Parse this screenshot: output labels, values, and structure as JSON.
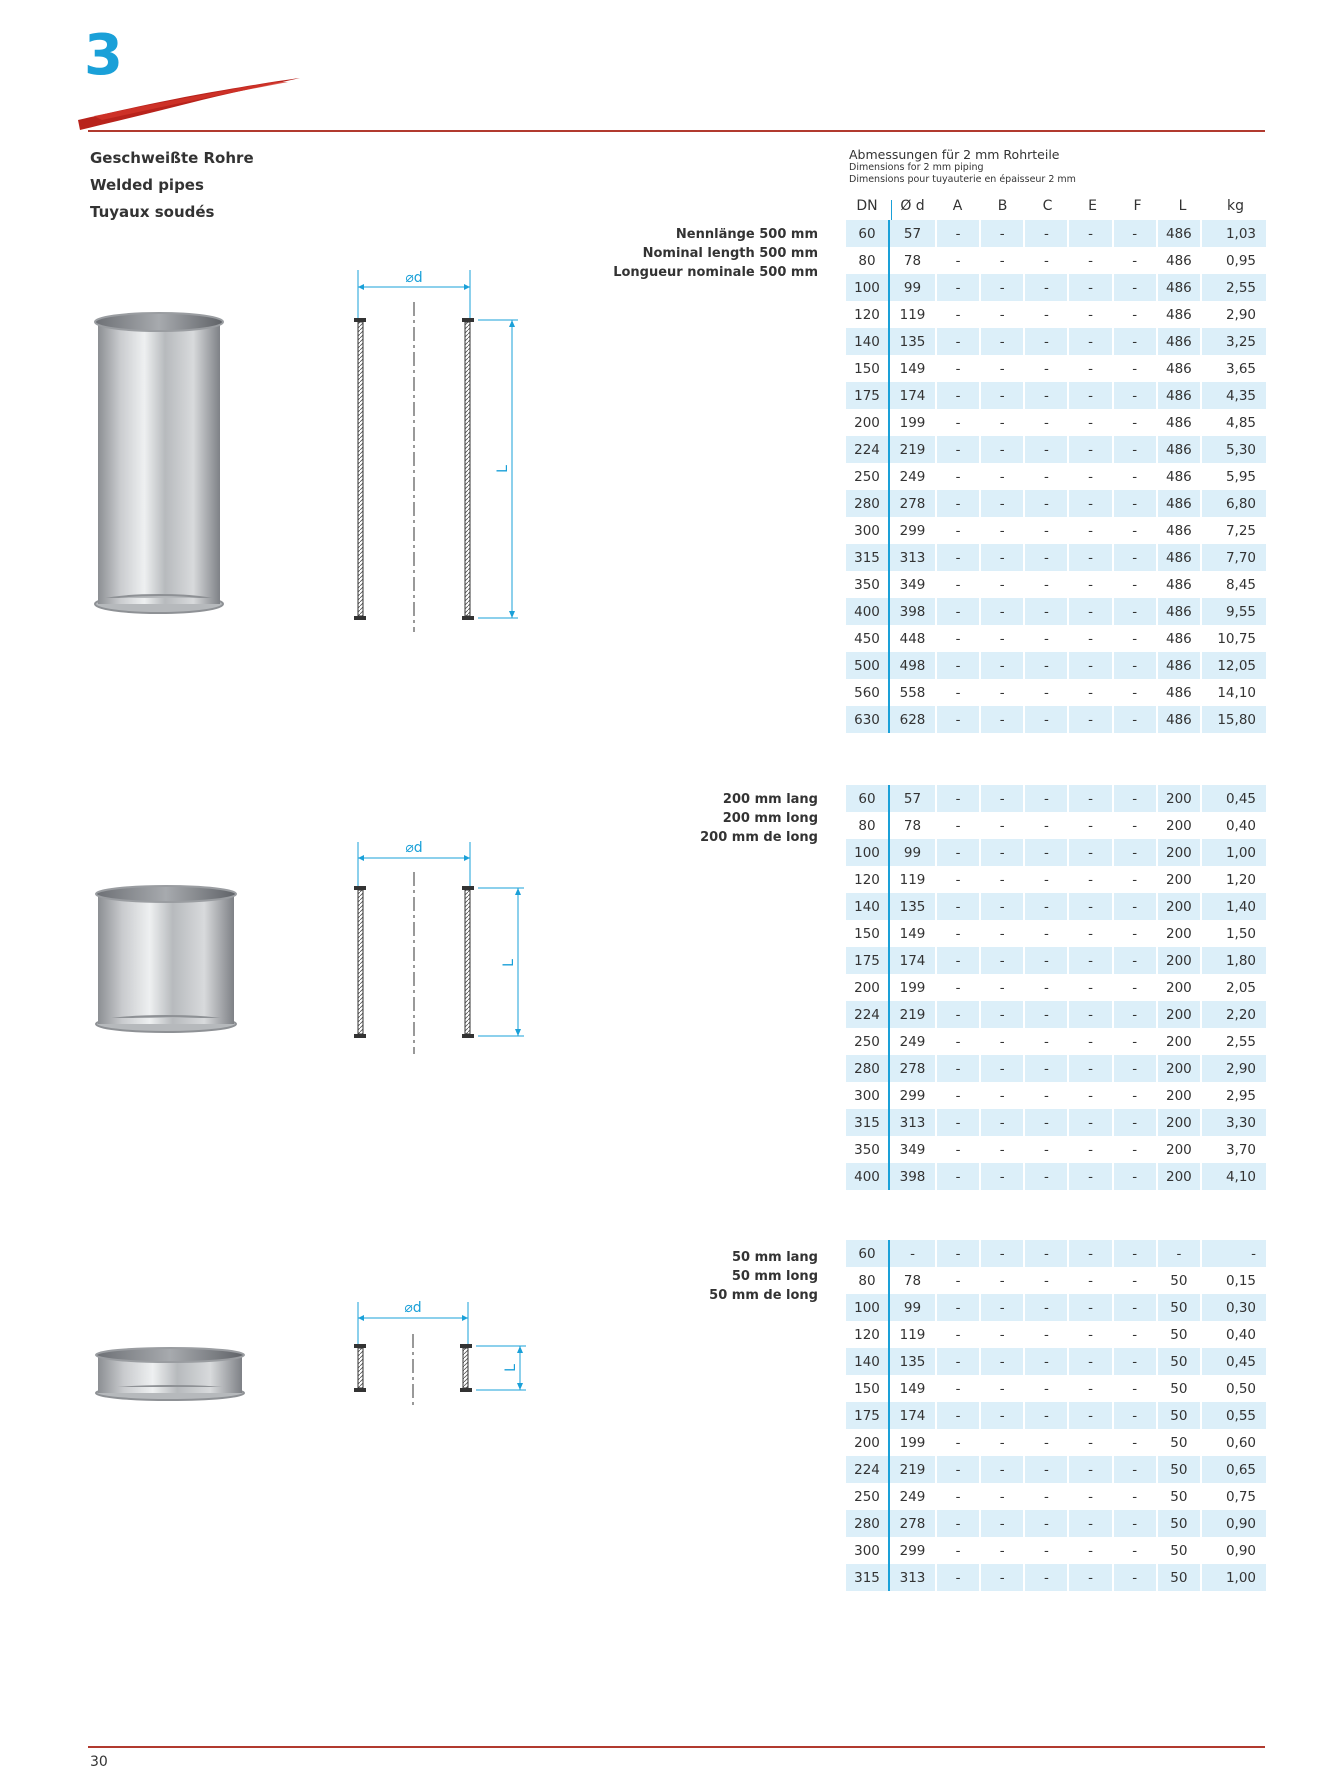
{
  "chapter": "3",
  "titles": [
    "Geschweißte Rohre",
    "Welded pipes",
    "Tuyaux soudés"
  ],
  "dim_header": {
    "line1": "Abmessungen für 2 mm Rohrteile",
    "line2": "Dimensions for 2 mm piping",
    "line3": "Dimensions pour tuyauterie en épaisseur 2 mm"
  },
  "columns": [
    "DN",
    "Ø d",
    "A",
    "B",
    "C",
    "E",
    "F",
    "L",
    "kg"
  ],
  "drawing_labels": {
    "diameter": "⌀d",
    "length": "L"
  },
  "sections": [
    {
      "note": [
        "Nennlänge 500 mm",
        "Nominal length 500 mm",
        "Longueur nominale 500 mm"
      ],
      "rows": [
        [
          "60",
          "57",
          "-",
          "-",
          "-",
          "-",
          "-",
          "486",
          "1,03"
        ],
        [
          "80",
          "78",
          "-",
          "-",
          "-",
          "-",
          "-",
          "486",
          "0,95"
        ],
        [
          "100",
          "99",
          "-",
          "-",
          "-",
          "-",
          "-",
          "486",
          "2,55"
        ],
        [
          "120",
          "119",
          "-",
          "-",
          "-",
          "-",
          "-",
          "486",
          "2,90"
        ],
        [
          "140",
          "135",
          "-",
          "-",
          "-",
          "-",
          "-",
          "486",
          "3,25"
        ],
        [
          "150",
          "149",
          "-",
          "-",
          "-",
          "-",
          "-",
          "486",
          "3,65"
        ],
        [
          "175",
          "174",
          "-",
          "-",
          "-",
          "-",
          "-",
          "486",
          "4,35"
        ],
        [
          "200",
          "199",
          "-",
          "-",
          "-",
          "-",
          "-",
          "486",
          "4,85"
        ],
        [
          "224",
          "219",
          "-",
          "-",
          "-",
          "-",
          "-",
          "486",
          "5,30"
        ],
        [
          "250",
          "249",
          "-",
          "-",
          "-",
          "-",
          "-",
          "486",
          "5,95"
        ],
        [
          "280",
          "278",
          "-",
          "-",
          "-",
          "-",
          "-",
          "486",
          "6,80"
        ],
        [
          "300",
          "299",
          "-",
          "-",
          "-",
          "-",
          "-",
          "486",
          "7,25"
        ],
        [
          "315",
          "313",
          "-",
          "-",
          "-",
          "-",
          "-",
          "486",
          "7,70"
        ],
        [
          "350",
          "349",
          "-",
          "-",
          "-",
          "-",
          "-",
          "486",
          "8,45"
        ],
        [
          "400",
          "398",
          "-",
          "-",
          "-",
          "-",
          "-",
          "486",
          "9,55"
        ],
        [
          "450",
          "448",
          "-",
          "-",
          "-",
          "-",
          "-",
          "486",
          "10,75"
        ],
        [
          "500",
          "498",
          "-",
          "-",
          "-",
          "-",
          "-",
          "486",
          "12,05"
        ],
        [
          "560",
          "558",
          "-",
          "-",
          "-",
          "-",
          "-",
          "486",
          "14,10"
        ],
        [
          "630",
          "628",
          "-",
          "-",
          "-",
          "-",
          "-",
          "486",
          "15,80"
        ]
      ]
    },
    {
      "note": [
        "200 mm lang",
        "200 mm long",
        "200 mm de long"
      ],
      "rows": [
        [
          "60",
          "57",
          "-",
          "-",
          "-",
          "-",
          "-",
          "200",
          "0,45"
        ],
        [
          "80",
          "78",
          "-",
          "-",
          "-",
          "-",
          "-",
          "200",
          "0,40"
        ],
        [
          "100",
          "99",
          "-",
          "-",
          "-",
          "-",
          "-",
          "200",
          "1,00"
        ],
        [
          "120",
          "119",
          "-",
          "-",
          "-",
          "-",
          "-",
          "200",
          "1,20"
        ],
        [
          "140",
          "135",
          "-",
          "-",
          "-",
          "-",
          "-",
          "200",
          "1,40"
        ],
        [
          "150",
          "149",
          "-",
          "-",
          "-",
          "-",
          "-",
          "200",
          "1,50"
        ],
        [
          "175",
          "174",
          "-",
          "-",
          "-",
          "-",
          "-",
          "200",
          "1,80"
        ],
        [
          "200",
          "199",
          "-",
          "-",
          "-",
          "-",
          "-",
          "200",
          "2,05"
        ],
        [
          "224",
          "219",
          "-",
          "-",
          "-",
          "-",
          "-",
          "200",
          "2,20"
        ],
        [
          "250",
          "249",
          "-",
          "-",
          "-",
          "-",
          "-",
          "200",
          "2,55"
        ],
        [
          "280",
          "278",
          "-",
          "-",
          "-",
          "-",
          "-",
          "200",
          "2,90"
        ],
        [
          "300",
          "299",
          "-",
          "-",
          "-",
          "-",
          "-",
          "200",
          "2,95"
        ],
        [
          "315",
          "313",
          "-",
          "-",
          "-",
          "-",
          "-",
          "200",
          "3,30"
        ],
        [
          "350",
          "349",
          "-",
          "-",
          "-",
          "-",
          "-",
          "200",
          "3,70"
        ],
        [
          "400",
          "398",
          "-",
          "-",
          "-",
          "-",
          "-",
          "200",
          "4,10"
        ]
      ]
    },
    {
      "note": [
        "50 mm lang",
        "50 mm long",
        "50 mm de long"
      ],
      "rows": [
        [
          "60",
          "-",
          "-",
          "-",
          "-",
          "-",
          "-",
          "-",
          "-"
        ],
        [
          "80",
          "78",
          "-",
          "-",
          "-",
          "-",
          "-",
          "50",
          "0,15"
        ],
        [
          "100",
          "99",
          "-",
          "-",
          "-",
          "-",
          "-",
          "50",
          "0,30"
        ],
        [
          "120",
          "119",
          "-",
          "-",
          "-",
          "-",
          "-",
          "50",
          "0,40"
        ],
        [
          "140",
          "135",
          "-",
          "-",
          "-",
          "-",
          "-",
          "50",
          "0,45"
        ],
        [
          "150",
          "149",
          "-",
          "-",
          "-",
          "-",
          "-",
          "50",
          "0,50"
        ],
        [
          "175",
          "174",
          "-",
          "-",
          "-",
          "-",
          "-",
          "50",
          "0,55"
        ],
        [
          "200",
          "199",
          "-",
          "-",
          "-",
          "-",
          "-",
          "50",
          "0,60"
        ],
        [
          "224",
          "219",
          "-",
          "-",
          "-",
          "-",
          "-",
          "50",
          "0,65"
        ],
        [
          "250",
          "249",
          "-",
          "-",
          "-",
          "-",
          "-",
          "50",
          "0,75"
        ],
        [
          "280",
          "278",
          "-",
          "-",
          "-",
          "-",
          "-",
          "50",
          "0,90"
        ],
        [
          "300",
          "299",
          "-",
          "-",
          "-",
          "-",
          "-",
          "50",
          "0,90"
        ],
        [
          "315",
          "313",
          "-",
          "-",
          "-",
          "-",
          "-",
          "50",
          "1,00"
        ]
      ]
    }
  ],
  "page_number": "30",
  "colors": {
    "accent_blue": "#1aa0d8",
    "rule_red": "#b13a2f",
    "row_shade": "#dceff9"
  }
}
